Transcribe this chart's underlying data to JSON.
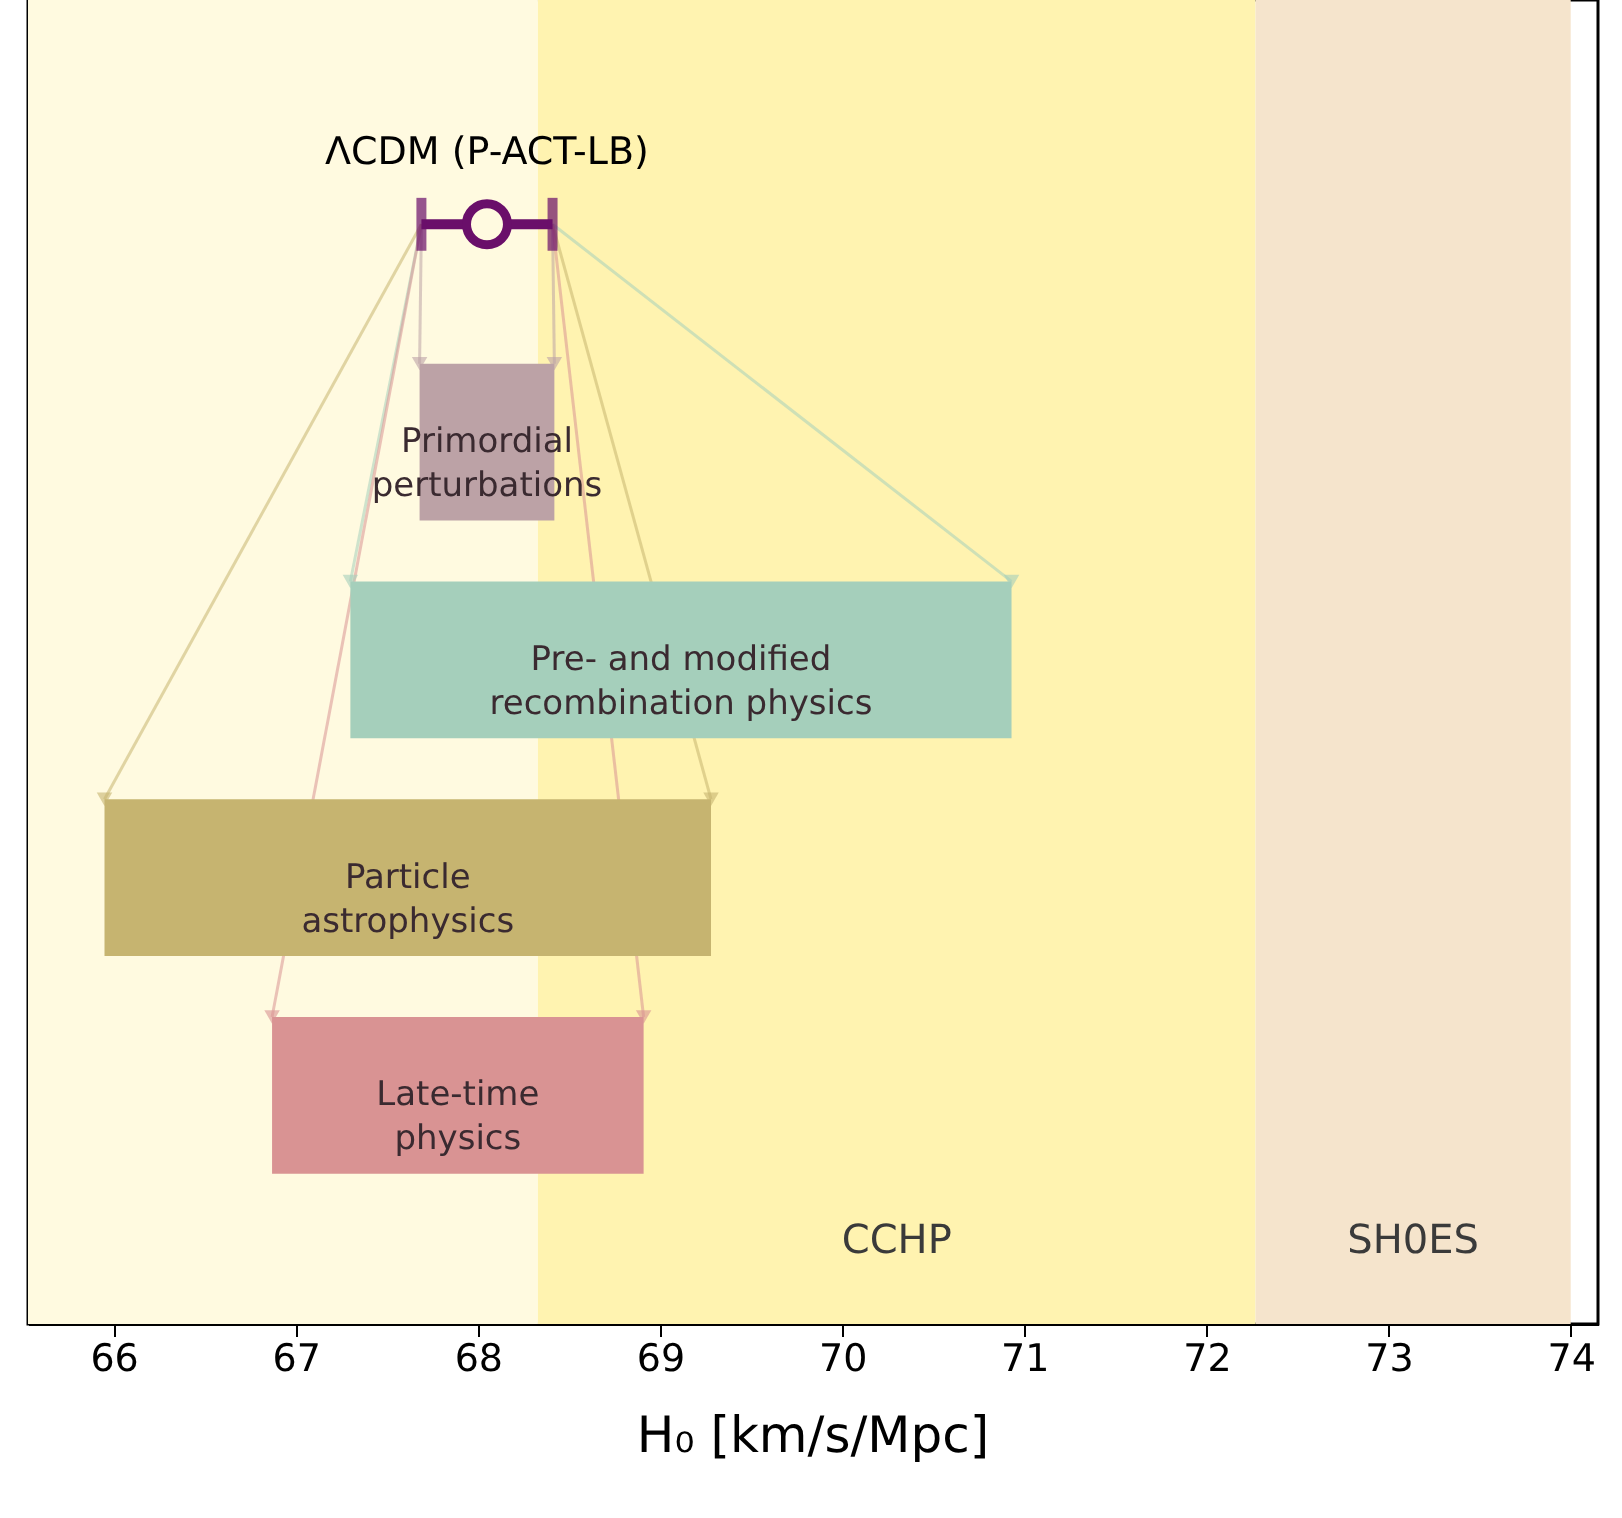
{
  "chart_data": {
    "type": "bar",
    "orientation": "horizontal",
    "xlabel": "H₀ [km/s/Mpc]",
    "xlim": [
      65.53,
      74.15
    ],
    "xticks": [
      66,
      67,
      68,
      69,
      70,
      71,
      72,
      73,
      74
    ],
    "tick_labels": "x",
    "grid": false,
    "categories": [
      "ΛCDM (P-ACT-LB)",
      "Primordial perturbations",
      "Pre- and modified recombination physics",
      "Particle astrophysics",
      "Late-time physics"
    ],
    "series": [
      {
        "type": "bar",
        "values": [
          null,
          0.74,
          3.63,
          3.33,
          2.04
        ],
        "base": [
          null,
          67.68,
          67.3,
          65.95,
          66.87
        ],
        "colors": [
          null,
          "#bca2a6",
          "#a5cfbb",
          "#c6b470",
          "#d99393"
        ]
      },
      {
        "type": "scatter",
        "color": "#6a0f6a",
        "marker": "circle",
        "values": [
          68.05,
          null,
          null,
          null,
          null
        ],
        "errors": [
          0.36,
          null,
          null,
          null,
          null
        ]
      }
    ],
    "bands": [
      {
        "axis": "x",
        "from": 65.53,
        "to": 68.33,
        "color": "#fffae0"
      },
      {
        "axis": "x",
        "from": 68.33,
        "to": 72.27,
        "label": "CCHP",
        "color": "#fff3b0"
      },
      {
        "axis": "x",
        "from": 72.27,
        "to": 74.0,
        "label": "SH0ES",
        "color": "#f5e4cc"
      }
    ]
  }
}
